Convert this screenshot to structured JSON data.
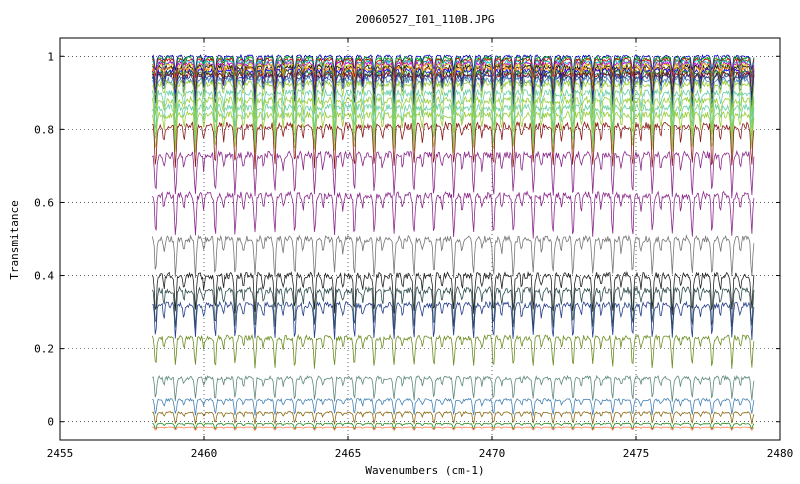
{
  "chart_data": {
    "type": "line",
    "title": "20060527_I01_110B.JPG",
    "xlabel": "Wavenumbers (cm-1)",
    "ylabel": "Transmitance",
    "xlim": [
      2455,
      2480
    ],
    "ylim": [
      -0.05,
      1.05
    ],
    "xticks": [
      2455,
      2460,
      2465,
      2470,
      2475,
      2480
    ],
    "xtick_labels": [
      "2455",
      "2460",
      "2465",
      "2470",
      "2475",
      "2480"
    ],
    "yticks": [
      0,
      0.2,
      0.4,
      0.6,
      0.8,
      1
    ],
    "ytick_labels": [
      "0",
      "0.2",
      "0.4",
      "0.6",
      "0.8",
      "1"
    ],
    "grid": true,
    "legend": "none",
    "x_range_data": [
      2458.2,
      2479.1
    ],
    "line_spacing": 0.69,
    "series": [
      {
        "baseline": 1.0,
        "depth": 0.04,
        "color": "#0000cc"
      },
      {
        "baseline": 0.995,
        "depth": 0.05,
        "color": "#00a000"
      },
      {
        "baseline": 0.99,
        "depth": 0.05,
        "color": "#cc0000"
      },
      {
        "baseline": 0.985,
        "depth": 0.06,
        "color": "#00bbbb"
      },
      {
        "baseline": 0.98,
        "depth": 0.06,
        "color": "#cc00cc"
      },
      {
        "baseline": 0.975,
        "depth": 0.06,
        "color": "#cccc00"
      },
      {
        "baseline": 0.97,
        "depth": 0.07,
        "color": "#111111"
      },
      {
        "baseline": 0.965,
        "depth": 0.07,
        "color": "#ff8800"
      },
      {
        "baseline": 0.96,
        "depth": 0.07,
        "color": "#0000ff"
      },
      {
        "baseline": 0.955,
        "depth": 0.08,
        "color": "#228b22"
      },
      {
        "baseline": 0.95,
        "depth": 0.08,
        "color": "#8b0000"
      },
      {
        "baseline": 0.945,
        "depth": 0.08,
        "color": "#1e3a8a"
      },
      {
        "baseline": 0.935,
        "depth": 0.09,
        "color": "#4682b4"
      },
      {
        "baseline": 0.925,
        "depth": 0.09,
        "color": "#9acd32"
      },
      {
        "baseline": 0.9,
        "depth": 0.1,
        "color": "#66cdaa"
      },
      {
        "baseline": 0.88,
        "depth": 0.1,
        "color": "#9acd32"
      },
      {
        "baseline": 0.86,
        "depth": 0.1,
        "color": "#66cdaa"
      },
      {
        "baseline": 0.84,
        "depth": 0.1,
        "color": "#9acd32"
      },
      {
        "baseline": 0.81,
        "depth": 0.11,
        "color": "#8b1a1a"
      },
      {
        "baseline": 0.73,
        "depth": 0.11,
        "color": "#8b2a8b"
      },
      {
        "baseline": 0.62,
        "depth": 0.11,
        "color": "#8b2a8b"
      },
      {
        "baseline": 0.5,
        "depth": 0.1,
        "color": "#777777"
      },
      {
        "baseline": 0.4,
        "depth": 0.1,
        "color": "#222222"
      },
      {
        "baseline": 0.36,
        "depth": 0.1,
        "color": "#2f4f4f"
      },
      {
        "baseline": 0.32,
        "depth": 0.09,
        "color": "#27408b"
      },
      {
        "baseline": 0.23,
        "depth": 0.08,
        "color": "#6b8e23"
      },
      {
        "baseline": 0.12,
        "depth": 0.06,
        "color": "#5f8a7a"
      },
      {
        "baseline": 0.06,
        "depth": 0.04,
        "color": "#4682b4"
      },
      {
        "baseline": 0.025,
        "depth": 0.03,
        "color": "#8b6914"
      },
      {
        "baseline": -0.005,
        "depth": 0.015,
        "color": "#228b22"
      },
      {
        "baseline": -0.015,
        "depth": 0.008,
        "color": "#ff7f50"
      }
    ]
  }
}
